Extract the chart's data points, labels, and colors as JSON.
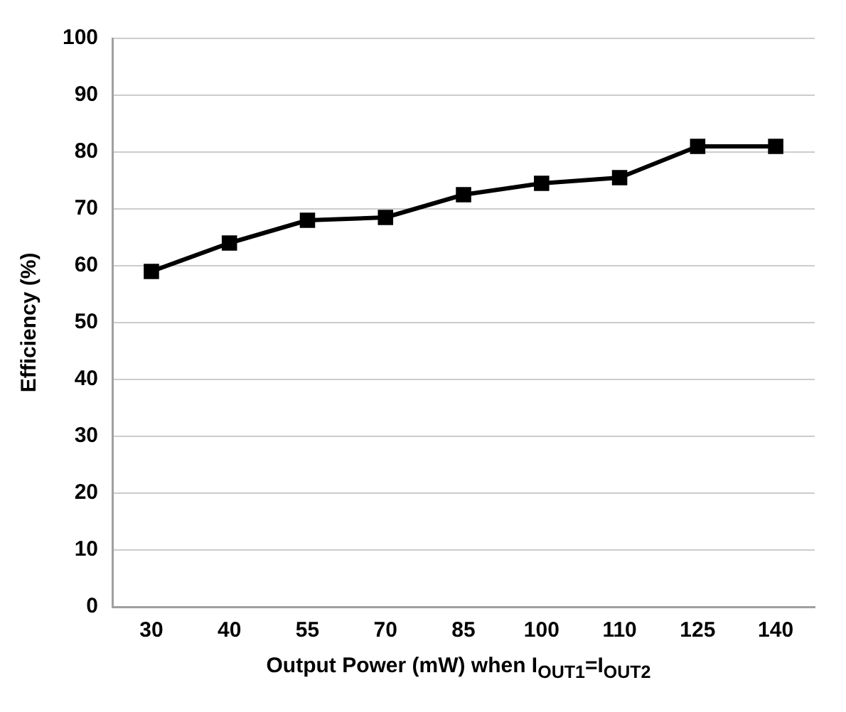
{
  "chart_data": {
    "type": "line",
    "xlabel": "Output Power (mW) when I$_{OUT1}$=I$_{OUT2}$",
    "ylabel": "Efficiency (%)",
    "categories": [
      "30",
      "40",
      "55",
      "70",
      "85",
      "100",
      "110",
      "125",
      "140"
    ],
    "series": [
      {
        "color": "#000000",
        "values": [
          59,
          64,
          68,
          68.5,
          72.5,
          74.5,
          75.5,
          81,
          81
        ]
      }
    ],
    "ylim": [
      0,
      100
    ],
    "yticks": [
      0,
      10,
      20,
      30,
      40,
      50,
      60,
      70,
      80,
      90,
      100
    ],
    "grid": "y",
    "marker": "square",
    "line_style": "solid",
    "legend": false
  }
}
